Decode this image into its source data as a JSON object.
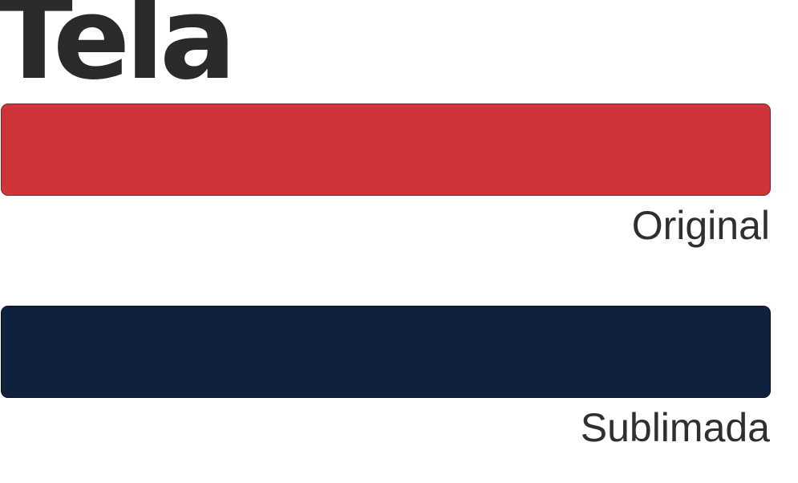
{
  "title": "Tela",
  "swatches": [
    {
      "label": "Original",
      "color": "#cf343a"
    },
    {
      "label": "Sublimada",
      "color": "#0f213d"
    }
  ]
}
